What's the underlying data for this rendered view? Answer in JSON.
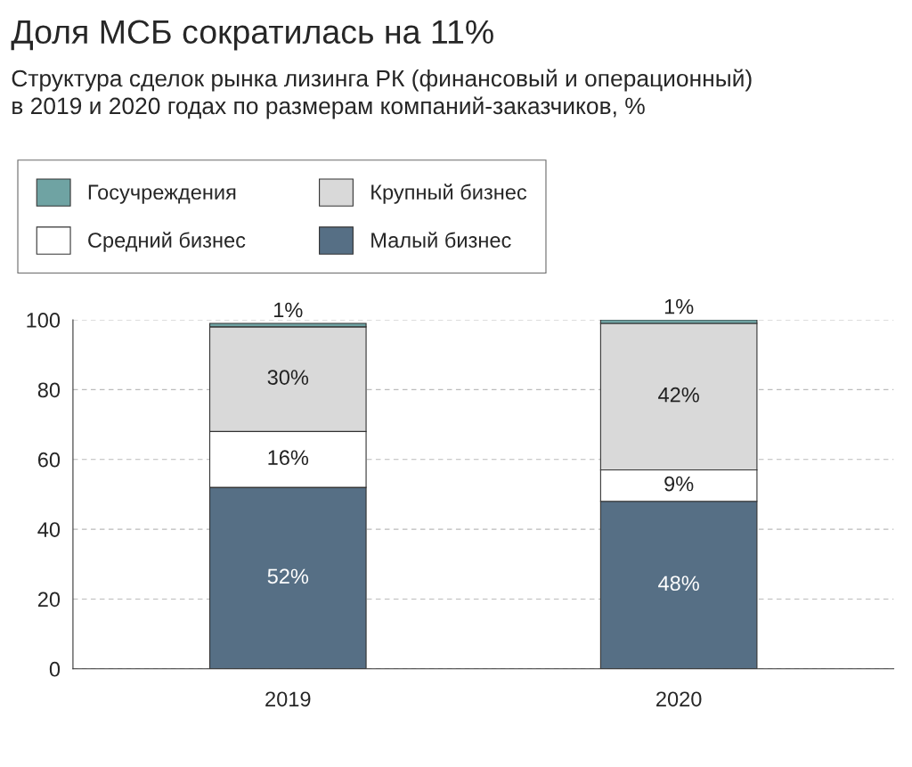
{
  "chart_data": {
    "type": "bar",
    "title": "Доля МСБ сократилась на 11%",
    "subtitle": "Структура сделок рынка лизинга РК (финансовый и операционный)\nв 2019 и 2020 годах по размерам компаний-заказчиков, %",
    "categories": [
      "2019",
      "2020"
    ],
    "stacked": true,
    "ylim": [
      0,
      100
    ],
    "yticks": [
      0,
      20,
      40,
      60,
      80,
      100
    ],
    "grid": "y",
    "legend": "top left",
    "series": [
      {
        "name": "Малый бизнес",
        "color": "#566f85",
        "values": [
          52,
          48
        ],
        "value_labels": [
          "52%",
          "48%"
        ]
      },
      {
        "name": "Средний бизнес",
        "color": "#ffffff",
        "values": [
          16,
          9
        ],
        "value_labels": [
          "16%",
          "9%"
        ]
      },
      {
        "name": "Крупный бизнес",
        "color": "#d9d9d9",
        "values": [
          30,
          42
        ],
        "value_labels": [
          "30%",
          "42%"
        ]
      },
      {
        "name": "Госучреждения",
        "color": "#6fa3a3",
        "values": [
          1,
          1
        ],
        "value_labels": [
          "1%",
          "1%"
        ]
      }
    ]
  }
}
